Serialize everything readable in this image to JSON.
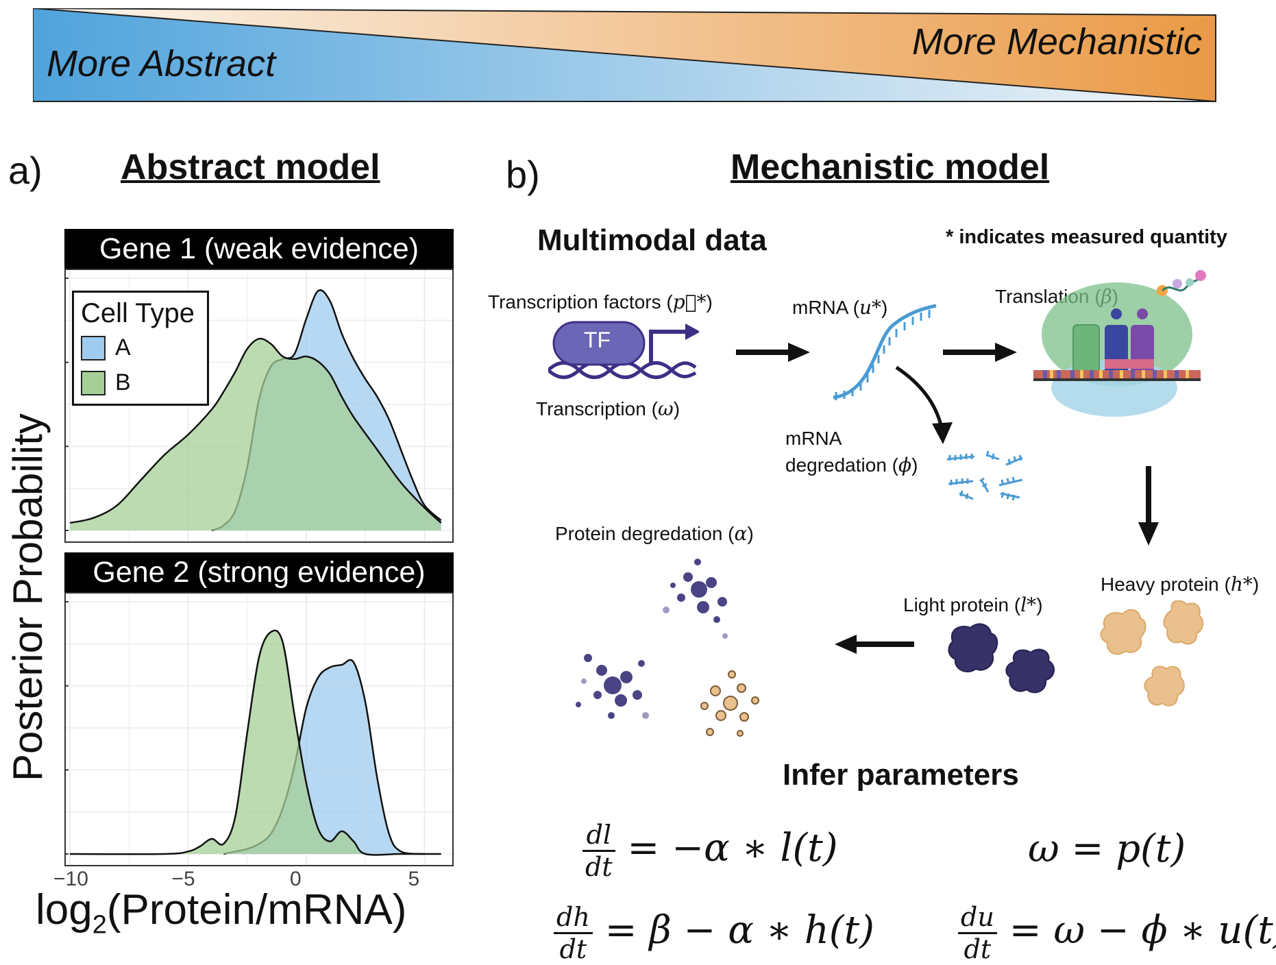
{
  "banner": {
    "left_text": "More Abstract",
    "right_text": "More Mechanistic",
    "colors": {
      "blue": "#4fa3dc",
      "light": "#f4f6f8",
      "orange": "#ea9a46"
    }
  },
  "panel_a": {
    "letter": "a)",
    "title": "Abstract model",
    "y_axis_label": "Posterior Probability",
    "x_axis_label_prefix": "log",
    "x_axis_label_sub": "2",
    "x_axis_label_suffix": "(Protein/mRNA)",
    "x_ticks": [
      "−10",
      "−5",
      "0",
      "5"
    ],
    "legend": {
      "title": "Cell Type",
      "items": [
        {
          "label": "A",
          "color": "#9fcbee"
        },
        {
          "label": "B",
          "color": "#a6cf97"
        }
      ]
    },
    "facets": [
      {
        "strip": "Gene 1 (weak evidence)"
      },
      {
        "strip": "Gene 2 (strong evidence)"
      }
    ]
  },
  "chart_data": {
    "type": "area",
    "xlim": [
      -10,
      6
    ],
    "x_ticks": [
      -10,
      -5,
      0,
      5
    ],
    "grid": true,
    "legend_position": "top-left",
    "facets": [
      {
        "series": [
          {
            "name": "A",
            "x": [
              -4,
              -3.5,
              -3,
              -2.5,
              -2,
              -1.5,
              -1,
              -0.5,
              0,
              0.5,
              1,
              1.5,
              2,
              2.5,
              3,
              3.5,
              4,
              4.5,
              5,
              5.7
            ],
            "y": [
              0.0,
              0.02,
              0.08,
              0.25,
              0.52,
              0.65,
              0.68,
              0.7,
              0.84,
              0.95,
              0.91,
              0.78,
              0.68,
              0.6,
              0.53,
              0.44,
              0.32,
              0.2,
              0.1,
              0.04
            ]
          },
          {
            "name": "B",
            "x": [
              -10,
              -9,
              -8,
              -7,
              -6,
              -5,
              -4,
              -3.5,
              -3,
              -2.5,
              -2,
              -1.5,
              -1,
              -0.5,
              0,
              0.5,
              1,
              1.5,
              2,
              3,
              4,
              5,
              5.7
            ],
            "y": [
              0.03,
              0.05,
              0.1,
              0.2,
              0.3,
              0.38,
              0.48,
              0.55,
              0.63,
              0.72,
              0.76,
              0.74,
              0.69,
              0.68,
              0.69,
              0.67,
              0.62,
              0.53,
              0.45,
              0.32,
              0.19,
              0.09,
              0.03
            ]
          }
        ]
      },
      {
        "series": [
          {
            "name": "A",
            "x": [
              -3.5,
              -3,
              -2.5,
              -2,
              -1.5,
              -1,
              -0.5,
              0,
              0.5,
              1,
              1.5,
              2,
              2.5,
              3,
              3.5,
              4,
              5
            ],
            "y": [
              0.0,
              0.01,
              0.02,
              0.04,
              0.08,
              0.18,
              0.35,
              0.58,
              0.7,
              0.74,
              0.75,
              0.76,
              0.6,
              0.3,
              0.08,
              0.01,
              0.0
            ]
          },
          {
            "name": "B",
            "x": [
              -10,
              -6,
              -5,
              -4.5,
              -4,
              -3.5,
              -3,
              -2.5,
              -2,
              -1.5,
              -1,
              -0.5,
              0,
              0.5,
              1,
              1.5,
              2,
              2.5,
              4,
              5.7
            ],
            "y": [
              0.0,
              0.0,
              0.01,
              0.03,
              0.06,
              0.04,
              0.15,
              0.48,
              0.78,
              0.88,
              0.84,
              0.55,
              0.28,
              0.1,
              0.05,
              0.09,
              0.05,
              0.0,
              0.0,
              0.0
            ]
          }
        ]
      }
    ]
  },
  "panel_b": {
    "letter": "b)",
    "title": "Mechanistic model",
    "multimodal_header": "Multimodal data",
    "measured_note": "* indicates measured quantity",
    "tf_label_text": "Transcription factors (",
    "tf_symbol": "p⃗*",
    "tf_close": ")",
    "tf_badge": "TF",
    "transcription_label": "Transcription (",
    "transcription_symbol": "ω",
    "mrna_label": "mRNA (",
    "mrna_symbol": "u*",
    "mrna_deg_line1": "mRNA",
    "mrna_deg_line2": "degredation (",
    "mrna_deg_symbol": "ϕ",
    "translation_label": "Translation (",
    "translation_symbol": "β",
    "heavy_label": "Heavy protein (",
    "heavy_symbol": "h*",
    "light_label": "Light protein (",
    "light_symbol": "l*",
    "protein_deg_label": "Protein degredation (",
    "protein_deg_symbol": "α",
    "close_paren": ")",
    "infer_header": "Infer parameters",
    "equations": {
      "eq1_num": "dl",
      "eq1_den": "dt",
      "eq1_rhs": "= −α ∗ l(t)",
      "eq2_num": "dh",
      "eq2_den": "dt",
      "eq2_rhs": "= β − α ∗ h(t)",
      "eq3": "ω = p(t)",
      "eq4_num": "du",
      "eq4_den": "dt",
      "eq4_rhs": "= ω − ϕ ∗ u(t)"
    },
    "colors": {
      "tf_purple": "#6b66b6",
      "dna_purple": "#3d2f86",
      "mrna_blue": "#4b9bd3",
      "ribosome_green": "#7cc08a",
      "ribosome_blue": "#a7d6ea",
      "light_protein": "#363167",
      "heavy_protein": "#e9c08e",
      "arrow": "#111111"
    }
  }
}
